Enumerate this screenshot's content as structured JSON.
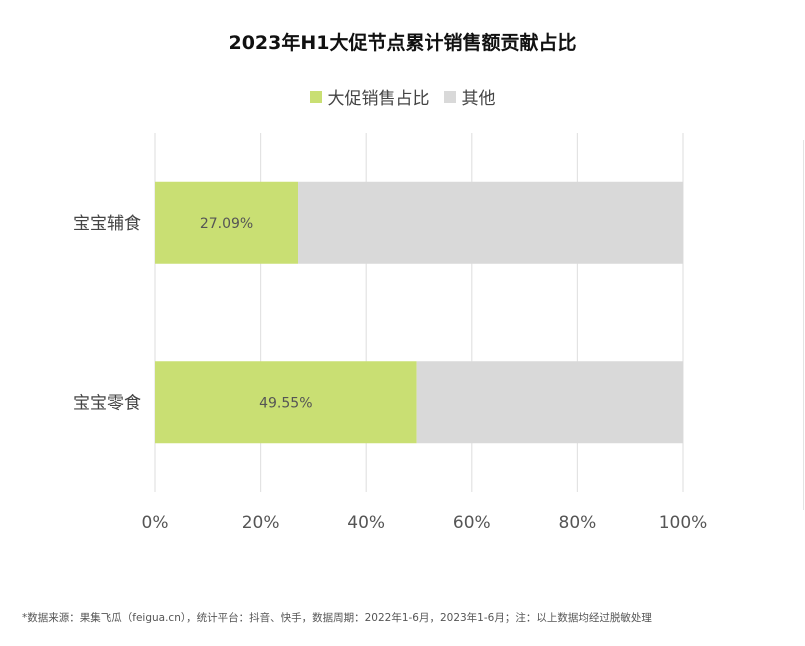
{
  "chart_data": {
    "type": "bar",
    "orientation": "horizontal",
    "stacked": true,
    "title": "2023年H1大促节点累计销售额贡献占比",
    "categories": [
      "宝宝辅食",
      "宝宝零食"
    ],
    "series": [
      {
        "name": "大促销售占比",
        "values": [
          27.09,
          49.55
        ],
        "color": "#c9df73"
      },
      {
        "name": "其他",
        "values": [
          72.91,
          50.45
        ],
        "color": "#d9d9d9"
      }
    ],
    "data_labels": [
      "27.09%",
      "49.55%"
    ],
    "xlim": [
      0,
      100
    ],
    "x_ticks": [
      "0%",
      "20%",
      "40%",
      "60%",
      "80%",
      "100%"
    ],
    "grid": true,
    "legend_position": "top"
  },
  "footnote": "*数据来源：果集飞瓜（feigua.cn），统计平台：抖音、快手，数据周期：2022年1-6月，2023年1-6月；注：以上数据均经过脱敏处理"
}
